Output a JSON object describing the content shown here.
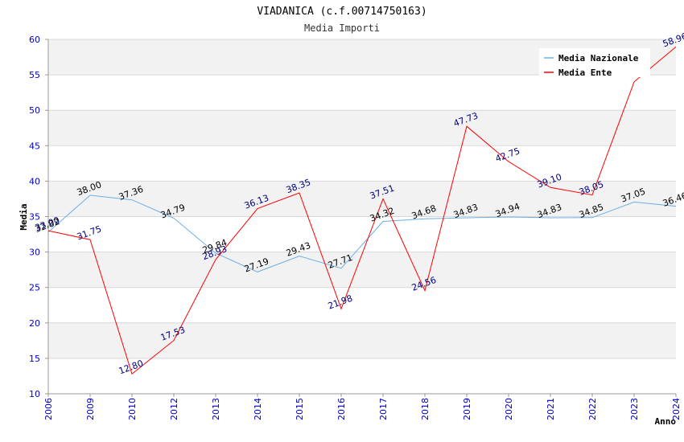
{
  "chart_data": {
    "type": "line",
    "title": "VIADANICA (c.f.00714750163)",
    "subtitle": "Media Importi",
    "xlabel": "Anno",
    "ylabel": "Media",
    "ylim": [
      10,
      60
    ],
    "yticks": [
      "10",
      "15",
      "20",
      "25",
      "30",
      "35",
      "40",
      "45",
      "50",
      "55",
      "60"
    ],
    "categories": [
      "2006",
      "2009",
      "2010",
      "2012",
      "2013",
      "2014",
      "2015",
      "2016",
      "2017",
      "2018",
      "2019",
      "2020",
      "2021",
      "2022",
      "2023",
      "2024"
    ],
    "legend_position": "top-right",
    "series": [
      {
        "name": "Media Nazionale",
        "color": "#6aaee8",
        "label_color": "#000000",
        "values": [
          32.82,
          38.0,
          37.36,
          34.79,
          29.84,
          27.19,
          29.43,
          27.71,
          34.32,
          34.68,
          34.83,
          34.94,
          34.83,
          34.85,
          37.05,
          36.46
        ],
        "labels": [
          "32.82",
          "38.00",
          "37.36",
          "34.79",
          "29.84",
          "27.19",
          "29.43",
          "27.71",
          "34.32",
          "34.68",
          "34.83",
          "34.94",
          "34.83",
          "34.85",
          "37.05",
          "36.46"
        ]
      },
      {
        "name": "Media Ente",
        "color": "#ff0000",
        "label_color": "#000080",
        "values": [
          33.0,
          31.75,
          12.8,
          17.53,
          28.93,
          36.13,
          38.35,
          21.98,
          37.51,
          24.56,
          47.73,
          42.75,
          39.1,
          38.05,
          54.0,
          58.96
        ],
        "labels": [
          "33.00",
          "31.75",
          "12.80",
          "17.53",
          "28.93",
          "36.13",
          "38.35",
          "21.98",
          "37.51",
          "24.56",
          "47.73",
          "42.75",
          "39.10",
          "38.05",
          null,
          "58.96"
        ]
      }
    ]
  }
}
